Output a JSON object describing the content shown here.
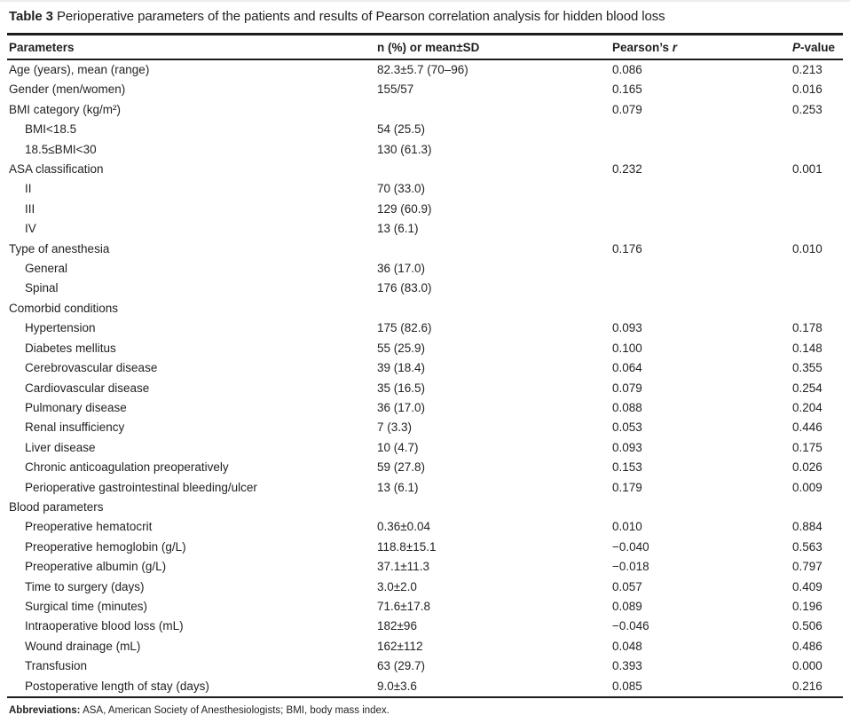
{
  "caption": {
    "label": "Table 3",
    "text": " Perioperative parameters of the patients and results of Pearson correlation analysis for hidden blood loss"
  },
  "table": {
    "headers": {
      "parameters": "Parameters",
      "n_mean": "n (%) or mean±SD",
      "pearsons_prefix": "Pearson’s ",
      "pearsons_italic": "r",
      "p_italic": "P",
      "p_suffix": "-value"
    },
    "rows": [
      {
        "label": "Age (years), mean (range)",
        "indent": false,
        "value": "82.3±5.7 (70–96)",
        "r": "0.086",
        "p": "0.213"
      },
      {
        "label": "Gender (men/women)",
        "indent": false,
        "value": "155/57",
        "r": "0.165",
        "p": "0.016"
      },
      {
        "label": "BMI category (kg/m²)",
        "indent": false,
        "value": "",
        "r": "0.079",
        "p": "0.253"
      },
      {
        "label": "BMI<18.5",
        "indent": true,
        "value": "54 (25.5)",
        "r": "",
        "p": ""
      },
      {
        "label": "18.5≤BMI<30",
        "indent": true,
        "value": "130 (61.3)",
        "r": "",
        "p": ""
      },
      {
        "label": "ASA classification",
        "indent": false,
        "value": "",
        "r": "0.232",
        "p": "0.001"
      },
      {
        "label": "II",
        "indent": true,
        "value": "70 (33.0)",
        "r": "",
        "p": ""
      },
      {
        "label": "III",
        "indent": true,
        "value": "129 (60.9)",
        "r": "",
        "p": ""
      },
      {
        "label": "IV",
        "indent": true,
        "value": "13 (6.1)",
        "r": "",
        "p": ""
      },
      {
        "label": "Type of anesthesia",
        "indent": false,
        "value": "",
        "r": "0.176",
        "p": "0.010"
      },
      {
        "label": "General",
        "indent": true,
        "value": "36 (17.0)",
        "r": "",
        "p": ""
      },
      {
        "label": "Spinal",
        "indent": true,
        "value": "176 (83.0)",
        "r": "",
        "p": ""
      },
      {
        "label": "Comorbid conditions",
        "indent": false,
        "value": "",
        "r": "",
        "p": ""
      },
      {
        "label": "Hypertension",
        "indent": true,
        "value": "175 (82.6)",
        "r": "0.093",
        "p": "0.178"
      },
      {
        "label": "Diabetes mellitus",
        "indent": true,
        "value": "55 (25.9)",
        "r": "0.100",
        "p": "0.148"
      },
      {
        "label": "Cerebrovascular disease",
        "indent": true,
        "value": "39 (18.4)",
        "r": "0.064",
        "p": "0.355"
      },
      {
        "label": "Cardiovascular disease",
        "indent": true,
        "value": "35 (16.5)",
        "r": "0.079",
        "p": "0.254"
      },
      {
        "label": "Pulmonary disease",
        "indent": true,
        "value": "36 (17.0)",
        "r": "0.088",
        "p": "0.204"
      },
      {
        "label": "Renal insufficiency",
        "indent": true,
        "value": "7 (3.3)",
        "r": "0.053",
        "p": "0.446"
      },
      {
        "label": "Liver disease",
        "indent": true,
        "value": "10 (4.7)",
        "r": "0.093",
        "p": "0.175"
      },
      {
        "label": "Chronic anticoagulation preoperatively",
        "indent": true,
        "value": "59 (27.8)",
        "r": "0.153",
        "p": "0.026"
      },
      {
        "label": "Perioperative gastrointestinal bleeding/ulcer",
        "indent": true,
        "value": "13 (6.1)",
        "r": "0.179",
        "p": "0.009"
      },
      {
        "label": "Blood parameters",
        "indent": false,
        "value": "",
        "r": "",
        "p": ""
      },
      {
        "label": "Preoperative hematocrit",
        "indent": true,
        "value": "0.36±0.04",
        "r": "0.010",
        "p": "0.884"
      },
      {
        "label": "Preoperative hemoglobin (g/L)",
        "indent": true,
        "value": "118.8±15.1",
        "r": "−0.040",
        "p": "0.563"
      },
      {
        "label": "Preoperative albumin (g/L)",
        "indent": true,
        "value": "37.1±11.3",
        "r": "−0.018",
        "p": "0.797"
      },
      {
        "label": "Time to surgery (days)",
        "indent": true,
        "value": "3.0±2.0",
        "r": "0.057",
        "p": "0.409"
      },
      {
        "label": "Surgical time (minutes)",
        "indent": true,
        "value": "71.6±17.8",
        "r": "0.089",
        "p": "0.196"
      },
      {
        "label": "Intraoperative blood loss (mL)",
        "indent": true,
        "value": "182±96",
        "r": "−0.046",
        "p": "0.506"
      },
      {
        "label": "Wound drainage (mL)",
        "indent": true,
        "value": "162±112",
        "r": "0.048",
        "p": "0.486"
      },
      {
        "label": "Transfusion",
        "indent": true,
        "value": "63 (29.7)",
        "r": "0.393",
        "p": "0.000"
      },
      {
        "label": "Postoperative length of stay (days)",
        "indent": true,
        "value": "9.0±3.6",
        "r": "0.085",
        "p": "0.216"
      }
    ]
  },
  "footnote": {
    "label": "Abbreviations:",
    "text": " ASA, American Society of Anesthesiologists; BMI, body mass index."
  }
}
